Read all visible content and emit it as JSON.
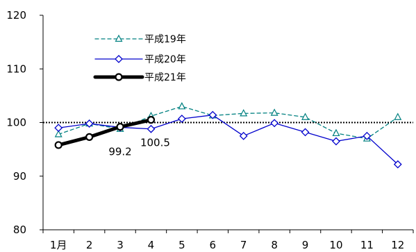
{
  "chart_data": {
    "type": "line",
    "title": "",
    "xlabel": "",
    "ylabel": "",
    "categories": [
      "1月",
      "2",
      "3",
      "4",
      "5",
      "6",
      "7",
      "8",
      "9",
      "10",
      "11",
      "12"
    ],
    "ylim": [
      80,
      120
    ],
    "yticks": [
      80,
      90,
      100,
      110,
      120
    ],
    "reference_line": 100,
    "legend_position": "top-left",
    "series": [
      {
        "name": "平成19年",
        "style": "dashed",
        "marker": "triangle",
        "color": "#008080",
        "values": [
          97.8,
          99.8,
          98.8,
          101.2,
          103.0,
          101.3,
          101.7,
          101.8,
          101.0,
          98.0,
          97.0,
          101.0
        ]
      },
      {
        "name": "平成20年",
        "style": "solid",
        "marker": "diamond",
        "color": "#0000cc",
        "values": [
          99.0,
          99.8,
          99.1,
          98.8,
          100.7,
          101.4,
          97.5,
          99.9,
          98.2,
          96.5,
          97.5,
          92.2
        ]
      },
      {
        "name": "平成21年",
        "style": "thick",
        "marker": "circle",
        "color": "#000000",
        "values": [
          95.8,
          97.3,
          99.2,
          100.5,
          null,
          null,
          null,
          null,
          null,
          null,
          null,
          null
        ]
      }
    ],
    "annotations": [
      {
        "text": "99.2",
        "category_index": 2,
        "value": 99.2,
        "series_index": 2
      },
      {
        "text": "100.5",
        "category_index": 3,
        "value": 100.5,
        "series_index": 2
      }
    ]
  }
}
